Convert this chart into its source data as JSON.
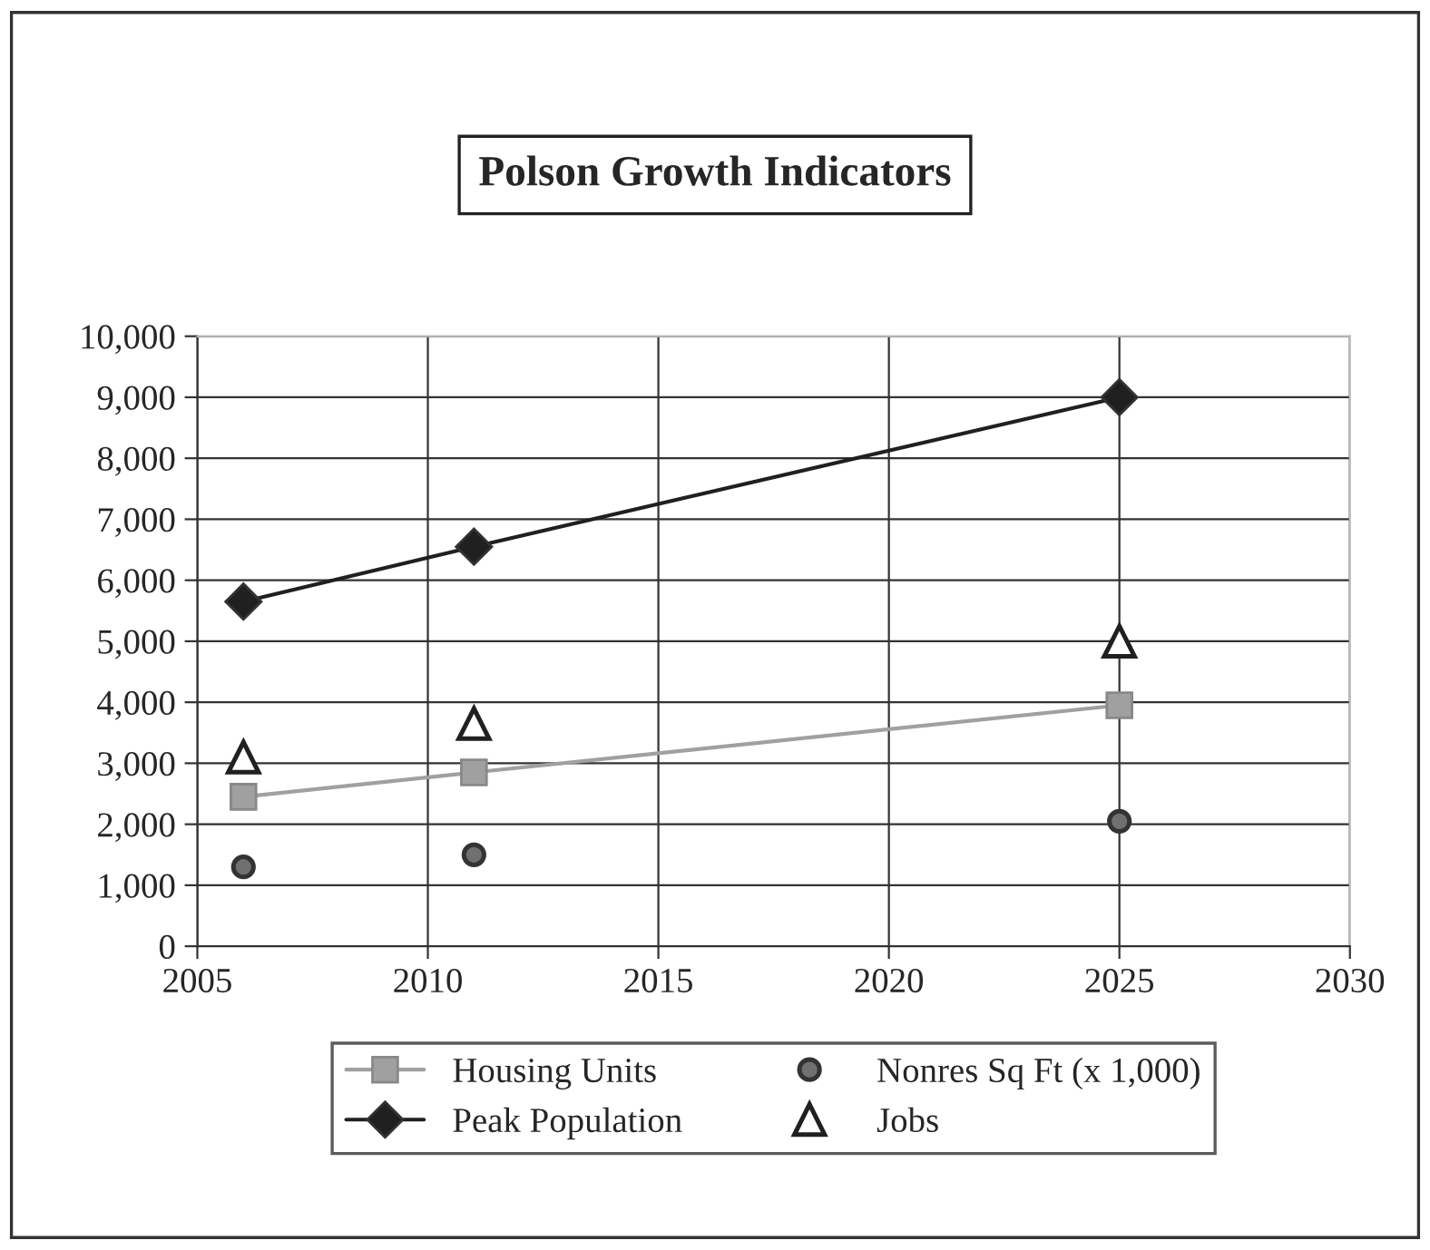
{
  "chart_data": {
    "type": "line",
    "title": "Polson Growth Indicators",
    "x": [
      2006,
      2011,
      2025
    ],
    "series": [
      {
        "name": "Housing Units",
        "color": "#a0a0a0",
        "marker": "square",
        "values": [
          2450,
          2850,
          3950
        ]
      },
      {
        "name": "Peak Population",
        "color": "#202020",
        "marker": "diamond",
        "values": [
          5650,
          6550,
          9000
        ]
      },
      {
        "name": "Nonres Sq Ft (x 1,000)",
        "type": "scatter",
        "color": "#707070",
        "marker": "circle",
        "values": [
          1300,
          1500,
          2050
        ]
      },
      {
        "name": "Jobs",
        "type": "scatter",
        "color": "#202020",
        "marker": "triangle",
        "values": [
          3100,
          3650,
          5000
        ]
      }
    ],
    "xlim": [
      2005,
      2030
    ],
    "xticks": [
      2005,
      2010,
      2015,
      2020,
      2025,
      2030
    ],
    "ylim": [
      0,
      10000
    ],
    "yticks": [
      {
        "value": 0,
        "label": "0"
      },
      {
        "value": 1000,
        "label": "1,000"
      },
      {
        "value": 2000,
        "label": "2,000"
      },
      {
        "value": 3000,
        "label": "3,000"
      },
      {
        "value": 4000,
        "label": "4,000"
      },
      {
        "value": 5000,
        "label": "5,000"
      },
      {
        "value": 6000,
        "label": "6,000"
      },
      {
        "value": 7000,
        "label": "7,000"
      },
      {
        "value": 8000,
        "label": "8,000"
      },
      {
        "value": 9000,
        "label": "9,000"
      },
      {
        "value": 10000,
        "label": "10,000"
      }
    ],
    "grid": true,
    "legend": "bottom"
  }
}
